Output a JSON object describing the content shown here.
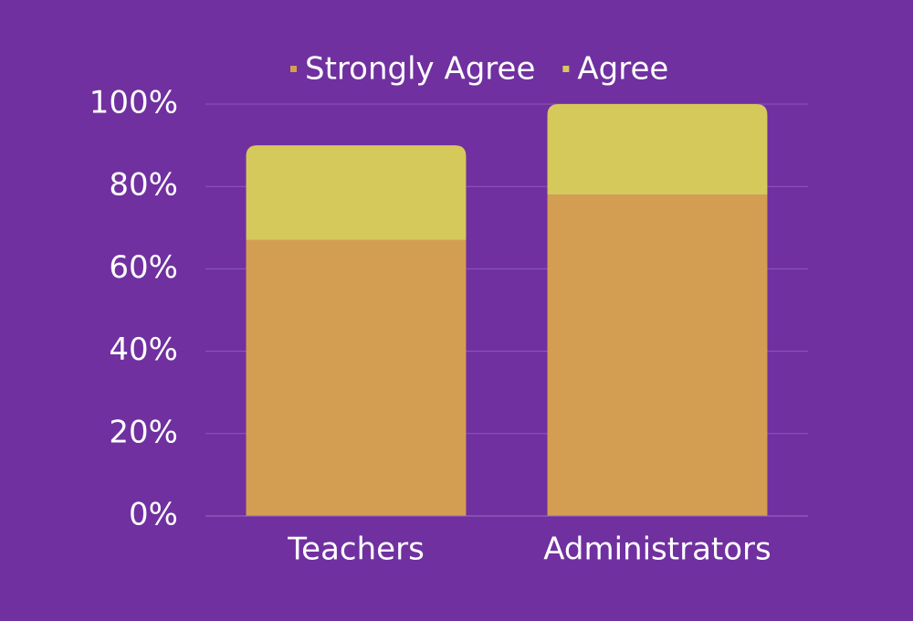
{
  "chart_data": {
    "type": "stacked_bar",
    "categories": [
      "Teachers",
      "Administrators"
    ],
    "series": [
      {
        "name": "Strongly Agree",
        "color": "#d49e52",
        "values": [
          67,
          78
        ]
      },
      {
        "name": "Agree",
        "color": "#d6c95b",
        "values": [
          23,
          22
        ]
      }
    ],
    "ylim": [
      0,
      100
    ],
    "yticks": [
      {
        "value": 0,
        "label": "0%"
      },
      {
        "value": 20,
        "label": "20%"
      },
      {
        "value": 40,
        "label": "40%"
      },
      {
        "value": 60,
        "label": "60%"
      },
      {
        "value": 80,
        "label": "80%"
      },
      {
        "value": 100,
        "label": "100%"
      }
    ],
    "grid": true,
    "legend": "top"
  }
}
